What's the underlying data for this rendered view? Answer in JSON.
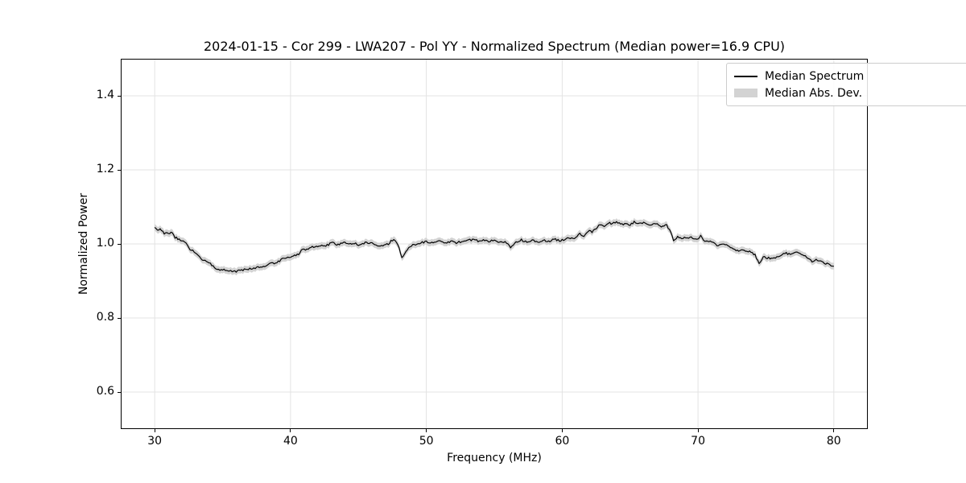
{
  "chart_data": {
    "type": "line",
    "title": "2024-01-15 - Cor 299 - LWA207 - Pol YY - Normalized Spectrum (Median power=16.9 CPU)",
    "xlabel": "Frequency (MHz)",
    "ylabel": "Normalized Power",
    "xlim": [
      27.5,
      82.5
    ],
    "ylim": [
      0.5,
      1.5
    ],
    "xticks": [
      30,
      40,
      50,
      60,
      70,
      80
    ],
    "yticks": [
      0.6,
      0.8,
      1.0,
      1.2,
      1.4
    ],
    "grid": true,
    "legend": {
      "position": "upper right",
      "entries": [
        {
          "label": "Median Spectrum",
          "type": "line",
          "color": "#000000"
        },
        {
          "label": "Median Abs. Dev.",
          "type": "band",
          "color": "#d3d3d3"
        }
      ]
    },
    "colors": {
      "line": "#000000",
      "band": "#d3d3d3",
      "grid": "#e3e3e3",
      "spine": "#000000",
      "background": "#ffffff"
    },
    "mad_band": {
      "halfwidth": 0.009,
      "color": "#d3d3d3"
    },
    "noise": {
      "amplitude_fine": 0.0028,
      "amplitude_coarse": 0.0042,
      "seed": 20240115,
      "step_mhz": 0.1
    },
    "series": [
      {
        "name": "Median Spectrum",
        "color": "#000000",
        "keypoints": [
          [
            30.0,
            1.043
          ],
          [
            30.2,
            1.036
          ],
          [
            30.4,
            1.041
          ],
          [
            30.7,
            1.03
          ],
          [
            31.0,
            1.026
          ],
          [
            31.2,
            1.03
          ],
          [
            31.5,
            1.014
          ],
          [
            31.8,
            1.008
          ],
          [
            32.0,
            1.002
          ],
          [
            32.2,
            1.005
          ],
          [
            32.5,
            0.99
          ],
          [
            32.8,
            0.98
          ],
          [
            33.0,
            0.972
          ],
          [
            33.3,
            0.965
          ],
          [
            33.6,
            0.958
          ],
          [
            34.0,
            0.947
          ],
          [
            34.4,
            0.937
          ],
          [
            34.8,
            0.931
          ],
          [
            35.2,
            0.928
          ],
          [
            35.6,
            0.925
          ],
          [
            36.0,
            0.926
          ],
          [
            36.5,
            0.927
          ],
          [
            37.0,
            0.931
          ],
          [
            37.5,
            0.933
          ],
          [
            38.0,
            0.941
          ],
          [
            38.5,
            0.946
          ],
          [
            39.0,
            0.953
          ],
          [
            39.4,
            0.958
          ],
          [
            39.8,
            0.961
          ],
          [
            40.2,
            0.967
          ],
          [
            40.6,
            0.976
          ],
          [
            40.9,
            0.986
          ],
          [
            41.2,
            0.983
          ],
          [
            41.6,
            0.989
          ],
          [
            42.0,
            0.994
          ],
          [
            42.4,
            0.999
          ],
          [
            42.8,
            0.997
          ],
          [
            43.2,
            1.001
          ],
          [
            43.6,
            0.999
          ],
          [
            44.0,
            1.002
          ],
          [
            44.4,
            1.0
          ],
          [
            44.8,
            1.003
          ],
          [
            45.2,
            1.0
          ],
          [
            45.6,
            1.002
          ],
          [
            46.0,
            0.998
          ],
          [
            46.4,
            0.993
          ],
          [
            46.8,
            0.999
          ],
          [
            47.2,
            1.002
          ],
          [
            47.6,
            1.011
          ],
          [
            47.9,
            0.996
          ],
          [
            48.2,
            0.963
          ],
          [
            48.5,
            0.98
          ],
          [
            48.8,
            0.994
          ],
          [
            49.2,
            0.999
          ],
          [
            49.6,
            1.001
          ],
          [
            50.0,
            1.003
          ],
          [
            50.5,
            1.006
          ],
          [
            51.0,
            1.009
          ],
          [
            51.4,
            1.003
          ],
          [
            51.8,
            1.009
          ],
          [
            52.2,
            1.006
          ],
          [
            52.6,
            1.009
          ],
          [
            53.0,
            1.005
          ],
          [
            53.4,
            1.009
          ],
          [
            53.8,
            1.006
          ],
          [
            54.2,
            1.01
          ],
          [
            54.6,
            1.007
          ],
          [
            55.0,
            1.009
          ],
          [
            55.4,
            1.005
          ],
          [
            55.8,
            1.008
          ],
          [
            56.2,
            0.993
          ],
          [
            56.6,
            1.004
          ],
          [
            57.0,
            1.007
          ],
          [
            57.4,
            1.003
          ],
          [
            57.8,
            1.008
          ],
          [
            58.2,
            1.005
          ],
          [
            58.6,
            1.01
          ],
          [
            59.0,
            1.008
          ],
          [
            59.4,
            1.012
          ],
          [
            59.8,
            1.01
          ],
          [
            60.2,
            1.014
          ],
          [
            60.6,
            1.013
          ],
          [
            61.0,
            1.017
          ],
          [
            61.3,
            1.03
          ],
          [
            61.6,
            1.02
          ],
          [
            61.9,
            1.034
          ],
          [
            62.2,
            1.031
          ],
          [
            62.5,
            1.044
          ],
          [
            62.8,
            1.051
          ],
          [
            63.1,
            1.047
          ],
          [
            63.4,
            1.054
          ],
          [
            63.7,
            1.051
          ],
          [
            64.0,
            1.056
          ],
          [
            64.3,
            1.052
          ],
          [
            64.6,
            1.056
          ],
          [
            65.0,
            1.054
          ],
          [
            65.3,
            1.058
          ],
          [
            65.6,
            1.054
          ],
          [
            66.0,
            1.057
          ],
          [
            66.4,
            1.051
          ],
          [
            66.8,
            1.054
          ],
          [
            67.1,
            1.046
          ],
          [
            67.4,
            1.043
          ],
          [
            67.7,
            1.047
          ],
          [
            68.0,
            1.028
          ],
          [
            68.2,
            1.01
          ],
          [
            68.5,
            1.022
          ],
          [
            68.8,
            1.018
          ],
          [
            69.2,
            1.016
          ],
          [
            69.6,
            1.014
          ],
          [
            70.0,
            1.012
          ],
          [
            70.2,
            1.022
          ],
          [
            70.5,
            1.008
          ],
          [
            71.0,
            1.003
          ],
          [
            71.5,
            0.997
          ],
          [
            72.0,
            0.996
          ],
          [
            72.5,
            0.991
          ],
          [
            73.0,
            0.984
          ],
          [
            73.4,
            0.988
          ],
          [
            73.8,
            0.979
          ],
          [
            74.2,
            0.971
          ],
          [
            74.5,
            0.948
          ],
          [
            74.8,
            0.968
          ],
          [
            75.1,
            0.966
          ],
          [
            75.5,
            0.963
          ],
          [
            76.0,
            0.969
          ],
          [
            76.4,
            0.974
          ],
          [
            76.8,
            0.971
          ],
          [
            77.2,
            0.975
          ],
          [
            77.6,
            0.968
          ],
          [
            78.0,
            0.961
          ],
          [
            78.4,
            0.956
          ],
          [
            78.8,
            0.959
          ],
          [
            79.2,
            0.949
          ],
          [
            79.6,
            0.944
          ],
          [
            80.0,
            0.936
          ]
        ]
      }
    ]
  }
}
